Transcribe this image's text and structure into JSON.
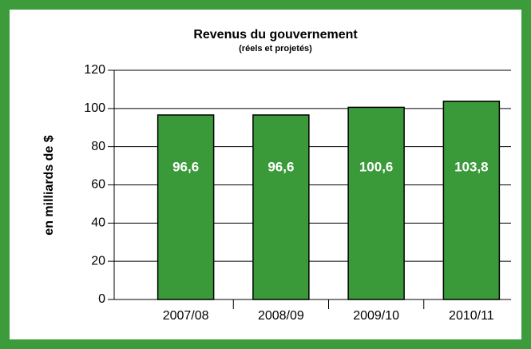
{
  "chart_data": {
    "type": "bar",
    "title": "Revenus du gouvernement",
    "subtitle": "(réels et projetés)",
    "y_label": "en milliards de $",
    "categories": [
      "2007/08",
      "2008/09",
      "2009/10",
      "2010/11"
    ],
    "values": [
      96.6,
      96.6,
      100.6,
      103.8
    ],
    "value_labels": [
      "96,6",
      "96,6",
      "100,6",
      "103,8"
    ],
    "color": "#3a9a3a",
    "ylim": [
      0,
      120
    ],
    "yticks": [
      0,
      20,
      40,
      60,
      80,
      100,
      120
    ],
    "grid": true
  }
}
